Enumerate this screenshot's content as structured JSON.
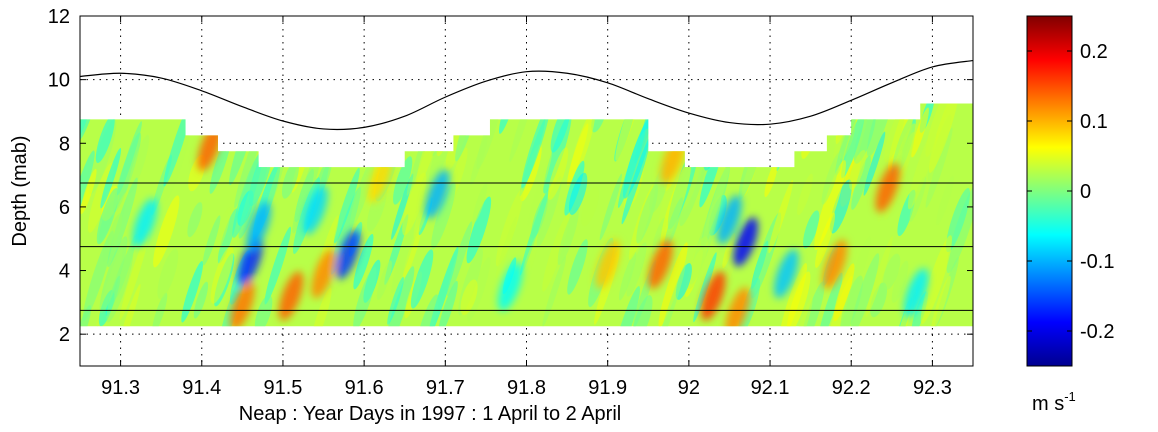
{
  "chart_data": {
    "type": "heatmap",
    "xlabel": "Neap : Year Days in 1997 : 1 April to 2 April",
    "ylabel": "Depth (mab)",
    "xlim": [
      91.25,
      92.35
    ],
    "ylim": [
      1,
      12
    ],
    "x_ticks": [
      91.3,
      91.4,
      91.5,
      91.6,
      91.7,
      91.8,
      91.9,
      92,
      92.1,
      92.2,
      92.3
    ],
    "x_tick_labels": [
      "91.3",
      "91.4",
      "91.5",
      "91.6",
      "91.7",
      "91.8",
      "91.9",
      "92",
      "92.1",
      "92.2",
      "92.3"
    ],
    "y_ticks": [
      2,
      4,
      6,
      8,
      10,
      12
    ],
    "y_tick_labels": [
      "2",
      "4",
      "6",
      "8",
      "10",
      "12"
    ],
    "grid": true,
    "colorbar": {
      "range": [
        -0.25,
        0.25
      ],
      "ticks": [
        0.2,
        0.1,
        0,
        -0.1,
        -0.2
      ],
      "tick_labels": [
        "0.2",
        "0.1",
        "0",
        "-0.1",
        "-0.2"
      ],
      "unit_base": "m s",
      "unit_exponent": "-1",
      "colormap": [
        "#00008f",
        "#0000ff",
        "#00ffff",
        "#7fff7f",
        "#ffff00",
        "#ff0000",
        "#800000"
      ]
    },
    "surface_elevation": {
      "x": [
        91.25,
        91.3,
        91.35,
        91.4,
        91.45,
        91.5,
        91.55,
        91.6,
        91.65,
        91.7,
        91.75,
        91.8,
        91.85,
        91.9,
        91.95,
        92.0,
        92.05,
        92.1,
        92.15,
        92.2,
        92.25,
        92.3,
        92.35
      ],
      "y": [
        10.1,
        10.2,
        10.05,
        9.65,
        9.15,
        8.7,
        8.45,
        8.5,
        8.85,
        9.45,
        9.95,
        10.25,
        10.2,
        9.9,
        9.4,
        8.95,
        8.65,
        8.6,
        8.85,
        9.35,
        9.9,
        10.4,
        10.6
      ]
    },
    "data_top": [
      {
        "x0": 91.25,
        "x1": 91.38,
        "top": 8.75
      },
      {
        "x0": 91.38,
        "x1": 91.42,
        "top": 8.25
      },
      {
        "x0": 91.42,
        "x1": 91.47,
        "top": 7.75
      },
      {
        "x0": 91.47,
        "x1": 91.65,
        "top": 7.25
      },
      {
        "x0": 91.65,
        "x1": 91.71,
        "top": 7.75
      },
      {
        "x0": 91.71,
        "x1": 91.755,
        "top": 8.25
      },
      {
        "x0": 91.755,
        "x1": 91.95,
        "top": 8.75
      },
      {
        "x0": 91.95,
        "x1": 91.995,
        "top": 7.75
      },
      {
        "x0": 91.995,
        "x1": 92.13,
        "top": 7.25
      },
      {
        "x0": 92.13,
        "x1": 92.17,
        "top": 7.75
      },
      {
        "x0": 92.17,
        "x1": 92.2,
        "top": 8.25
      },
      {
        "x0": 92.2,
        "x1": 92.285,
        "top": 8.75
      },
      {
        "x0": 92.285,
        "x1": 92.35,
        "top": 9.25
      }
    ],
    "data_bottom": 2.25,
    "reference_depths": [
      2.75,
      4.75,
      6.75
    ],
    "anomalies": [
      {
        "x": 91.41,
        "y": 7.9,
        "v": 0.14
      },
      {
        "x": 91.46,
        "y": 4.3,
        "v": -0.17
      },
      {
        "x": 91.47,
        "y": 5.4,
        "v": -0.1
      },
      {
        "x": 91.45,
        "y": 2.9,
        "v": 0.13
      },
      {
        "x": 91.51,
        "y": 3.2,
        "v": 0.14
      },
      {
        "x": 91.55,
        "y": 3.9,
        "v": 0.12
      },
      {
        "x": 91.58,
        "y": 4.5,
        "v": -0.16
      },
      {
        "x": 91.54,
        "y": 5.9,
        "v": -0.08
      },
      {
        "x": 91.69,
        "y": 6.4,
        "v": -0.1
      },
      {
        "x": 91.62,
        "y": 6.9,
        "v": 0.08
      },
      {
        "x": 91.9,
        "y": 4.2,
        "v": 0.09
      },
      {
        "x": 91.965,
        "y": 4.2,
        "v": 0.14
      },
      {
        "x": 92.03,
        "y": 3.2,
        "v": 0.16
      },
      {
        "x": 92.06,
        "y": 2.7,
        "v": 0.12
      },
      {
        "x": 92.07,
        "y": 4.9,
        "v": -0.19
      },
      {
        "x": 92.05,
        "y": 5.6,
        "v": -0.1
      },
      {
        "x": 91.98,
        "y": 7.5,
        "v": 0.1
      },
      {
        "x": 92.18,
        "y": 4.2,
        "v": 0.12
      },
      {
        "x": 92.245,
        "y": 6.6,
        "v": 0.14
      },
      {
        "x": 92.12,
        "y": 3.9,
        "v": -0.09
      },
      {
        "x": 92.28,
        "y": 3.3,
        "v": -0.07
      },
      {
        "x": 91.33,
        "y": 5.5,
        "v": -0.07
      },
      {
        "x": 91.78,
        "y": 3.5,
        "v": -0.06
      }
    ]
  }
}
